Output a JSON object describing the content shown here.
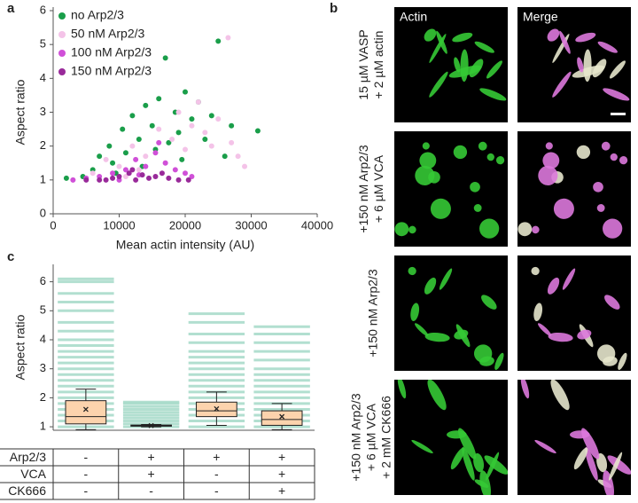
{
  "panel_labels": [
    "a",
    "b",
    "c"
  ],
  "chart_data": [
    {
      "type": "scatter",
      "xlabel": "Mean actin intensity (AU)",
      "ylabel": "Aspect ratio",
      "xlim": [
        0,
        40000
      ],
      "ylim": [
        0,
        6
      ],
      "xticks": [
        0,
        10000,
        20000,
        30000,
        40000
      ],
      "yticks": [
        0,
        1,
        2,
        3,
        4,
        5,
        6
      ],
      "legend": "upper left",
      "series": [
        {
          "name": "no Arp2/3",
          "color": "#1a9e4a",
          "x": [
            2000,
            4500,
            6000,
            7000,
            8500,
            9000,
            10500,
            11000,
            12000,
            13000,
            14000,
            15000,
            16000,
            17000,
            17500,
            18500,
            19000,
            20000,
            21000,
            22000,
            23000,
            24000,
            25000,
            26000,
            27000,
            31000,
            13500,
            9500,
            15500,
            19500
          ],
          "y": [
            1.05,
            1.1,
            1.3,
            1.7,
            2.0,
            1.5,
            2.5,
            1.8,
            2.9,
            2.2,
            3.2,
            2.6,
            3.4,
            4.6,
            2.1,
            3.0,
            2.4,
            3.6,
            2.8,
            3.3,
            2.2,
            2.9,
            5.1,
            1.7,
            2.6,
            2.45,
            1.4,
            1.2,
            1.9,
            1.6
          ]
        },
        {
          "name": "50 nM Arp2/3",
          "color": "#f4c3e8",
          "x": [
            3000,
            6000,
            8000,
            10000,
            12000,
            14000,
            16000,
            18000,
            19000,
            20000,
            21000,
            22000,
            23000,
            24000,
            25000,
            26500,
            27000,
            28000,
            29000,
            13000,
            11000,
            17000
          ],
          "y": [
            1.0,
            1.2,
            1.6,
            1.4,
            2.0,
            1.7,
            2.5,
            2.2,
            3.0,
            1.9,
            2.6,
            3.3,
            2.4,
            2.0,
            2.8,
            5.2,
            2.1,
            1.7,
            1.4,
            1.3,
            1.1,
            1.5
          ]
        },
        {
          "name": "100 nM Arp2/3",
          "color": "#d050d8",
          "x": [
            3000,
            5000,
            7000,
            9000,
            11000,
            12500,
            14000,
            15500,
            17000,
            18500,
            20000,
            21000,
            16000,
            10000,
            13000
          ],
          "y": [
            1.0,
            1.05,
            1.1,
            1.2,
            1.3,
            1.6,
            1.4,
            1.8,
            1.5,
            1.3,
            1.2,
            1.1,
            2.1,
            1.0,
            1.15
          ]
        },
        {
          "name": "150 nM Arp2/3",
          "color": "#992a9a",
          "x": [
            5000,
            7000,
            9000,
            10000,
            11500,
            12500,
            13500,
            14500,
            15500,
            16500,
            17500,
            19000,
            20500,
            12000,
            8000
          ],
          "y": [
            1.0,
            1.0,
            1.05,
            1.1,
            1.2,
            1.0,
            1.15,
            1.05,
            1.1,
            1.2,
            1.05,
            1.0,
            1.0,
            1.3,
            1.0
          ]
        }
      ]
    },
    {
      "type": "box",
      "ylabel": "Aspect ratio",
      "ylim": [
        0.88,
        6.6
      ],
      "yticks": [
        1,
        2,
        3,
        4,
        5,
        6
      ],
      "box_color": "#fcd3ad",
      "points_color": "#a5dac8",
      "boxes": [
        {
          "whislo": 0.9,
          "q1": 1.1,
          "med": 1.35,
          "q3": 1.9,
          "whishi": 2.3,
          "mean": 1.6,
          "points": [
            1.0,
            1.2,
            1.4,
            1.6,
            1.8,
            2.0,
            2.2,
            2.4,
            2.6,
            2.8,
            3.0,
            3.2,
            3.4,
            3.6,
            3.8,
            4.0,
            4.3,
            4.6,
            5.0,
            5.3,
            5.6,
            6.0,
            6.1
          ]
        },
        {
          "whislo": 1.0,
          "q1": 1.02,
          "med": 1.04,
          "q3": 1.06,
          "whishi": 1.08,
          "mean": 1.04,
          "points": [
            1.0,
            1.1,
            1.2,
            1.3,
            1.4,
            1.5,
            1.6,
            1.7,
            1.8,
            1.85
          ]
        },
        {
          "whislo": 1.05,
          "q1": 1.35,
          "med": 1.55,
          "q3": 1.85,
          "whishi": 2.2,
          "mean": 1.62,
          "points": [
            1.0,
            1.2,
            1.4,
            1.6,
            1.8,
            2.0,
            2.2,
            2.4,
            2.6,
            2.8,
            3.0,
            3.2,
            3.4,
            3.6,
            3.9,
            4.2,
            4.6,
            4.9
          ]
        },
        {
          "whislo": 0.9,
          "q1": 1.05,
          "med": 1.25,
          "q3": 1.55,
          "whishi": 1.8,
          "mean": 1.35,
          "points": [
            1.0,
            1.2,
            1.4,
            1.6,
            1.8,
            2.0,
            2.2,
            2.4,
            2.6,
            2.8,
            3.0,
            3.3,
            3.6,
            3.9,
            4.2,
            4.45
          ]
        }
      ]
    }
  ],
  "table": {
    "rows": [
      {
        "label": "Arp2/3",
        "cells": [
          "-",
          "+",
          "+",
          "+"
        ]
      },
      {
        "label": "VCA",
        "cells": [
          "-",
          "+",
          "-",
          "+"
        ]
      },
      {
        "label": "CK666",
        "cells": [
          "-",
          "-",
          "-",
          "+"
        ]
      }
    ]
  },
  "micrographs": {
    "columns": [
      "Actin",
      "Merge"
    ],
    "rows": [
      [
        "15 µM VASP",
        "+ 2 µM actin"
      ],
      [
        "+150 nM Arp2/3",
        "+ 6 µM VCA"
      ],
      [
        "+150 nM Arp2/3"
      ],
      [
        "+150 nM Arp2/3",
        "+ 6 µM VCA",
        "+ 2 mM CK666"
      ]
    ]
  }
}
